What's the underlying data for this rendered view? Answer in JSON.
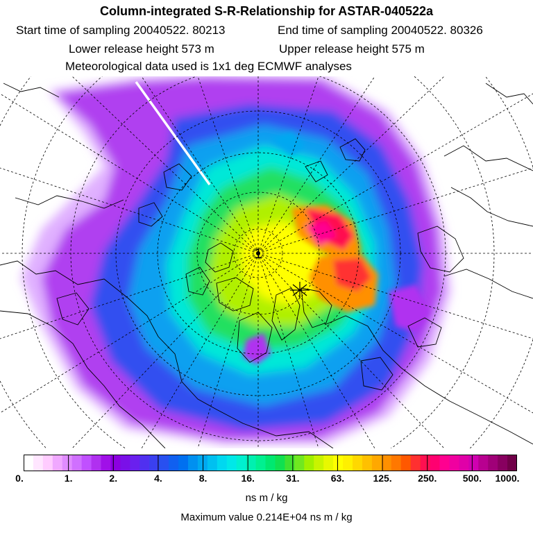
{
  "header": {
    "title": "Column-integrated S-R-Relationship for ASTAR-040522a",
    "start_label": "Start time of sampling 20040522. 80213",
    "end_label": "End time of sampling 20040522. 80326",
    "lower_label": "Lower release height  573 m",
    "upper_label": "Upper release height  575 m",
    "met_label": "Meteorological data used is 1x1 deg ECMWF analyses"
  },
  "map": {
    "projection": "north-polar-stereographic",
    "features": [
      "coastlines",
      "latitude-circles",
      "meridians",
      "concentration-field",
      "release-marker"
    ],
    "center_annotation": "1"
  },
  "colorbar": {
    "tick_labels": [
      "0.",
      "1.",
      "2.",
      "4.",
      "8.",
      "16.",
      "31.",
      "63.",
      "125.",
      "250.",
      "500.",
      "1000."
    ],
    "colors": [
      "#ffffff",
      "#ffe6ff",
      "#ffccff",
      "#f0a8ff",
      "#e08cff",
      "#d070ff",
      "#c050ff",
      "#b030f0",
      "#a010e8",
      "#8c00e0",
      "#7a10e8",
      "#6a20ee",
      "#5030f0",
      "#3a40f0",
      "#2850f0",
      "#1060f0",
      "#0070f0",
      "#0090f0",
      "#00a8f0",
      "#00c0f0",
      "#00d8f0",
      "#00e8e8",
      "#00f0d0",
      "#00f0b0",
      "#00f090",
      "#00e870",
      "#10e050",
      "#40e030",
      "#70e820",
      "#a0f000",
      "#c8f400",
      "#e8f800",
      "#ffff00",
      "#fff000",
      "#ffd800",
      "#ffc000",
      "#ffa800",
      "#ff9000",
      "#ff7800",
      "#ff5800",
      "#ff3030",
      "#ff1050",
      "#ff0070",
      "#ff0090",
      "#f000a0",
      "#e000a8",
      "#d000b0",
      "#b80090",
      "#a00078",
      "#880060",
      "#700048"
    ]
  },
  "units_label": "ns m / kg",
  "max_label": "Maximum value  0.214E+04 ns m / kg"
}
